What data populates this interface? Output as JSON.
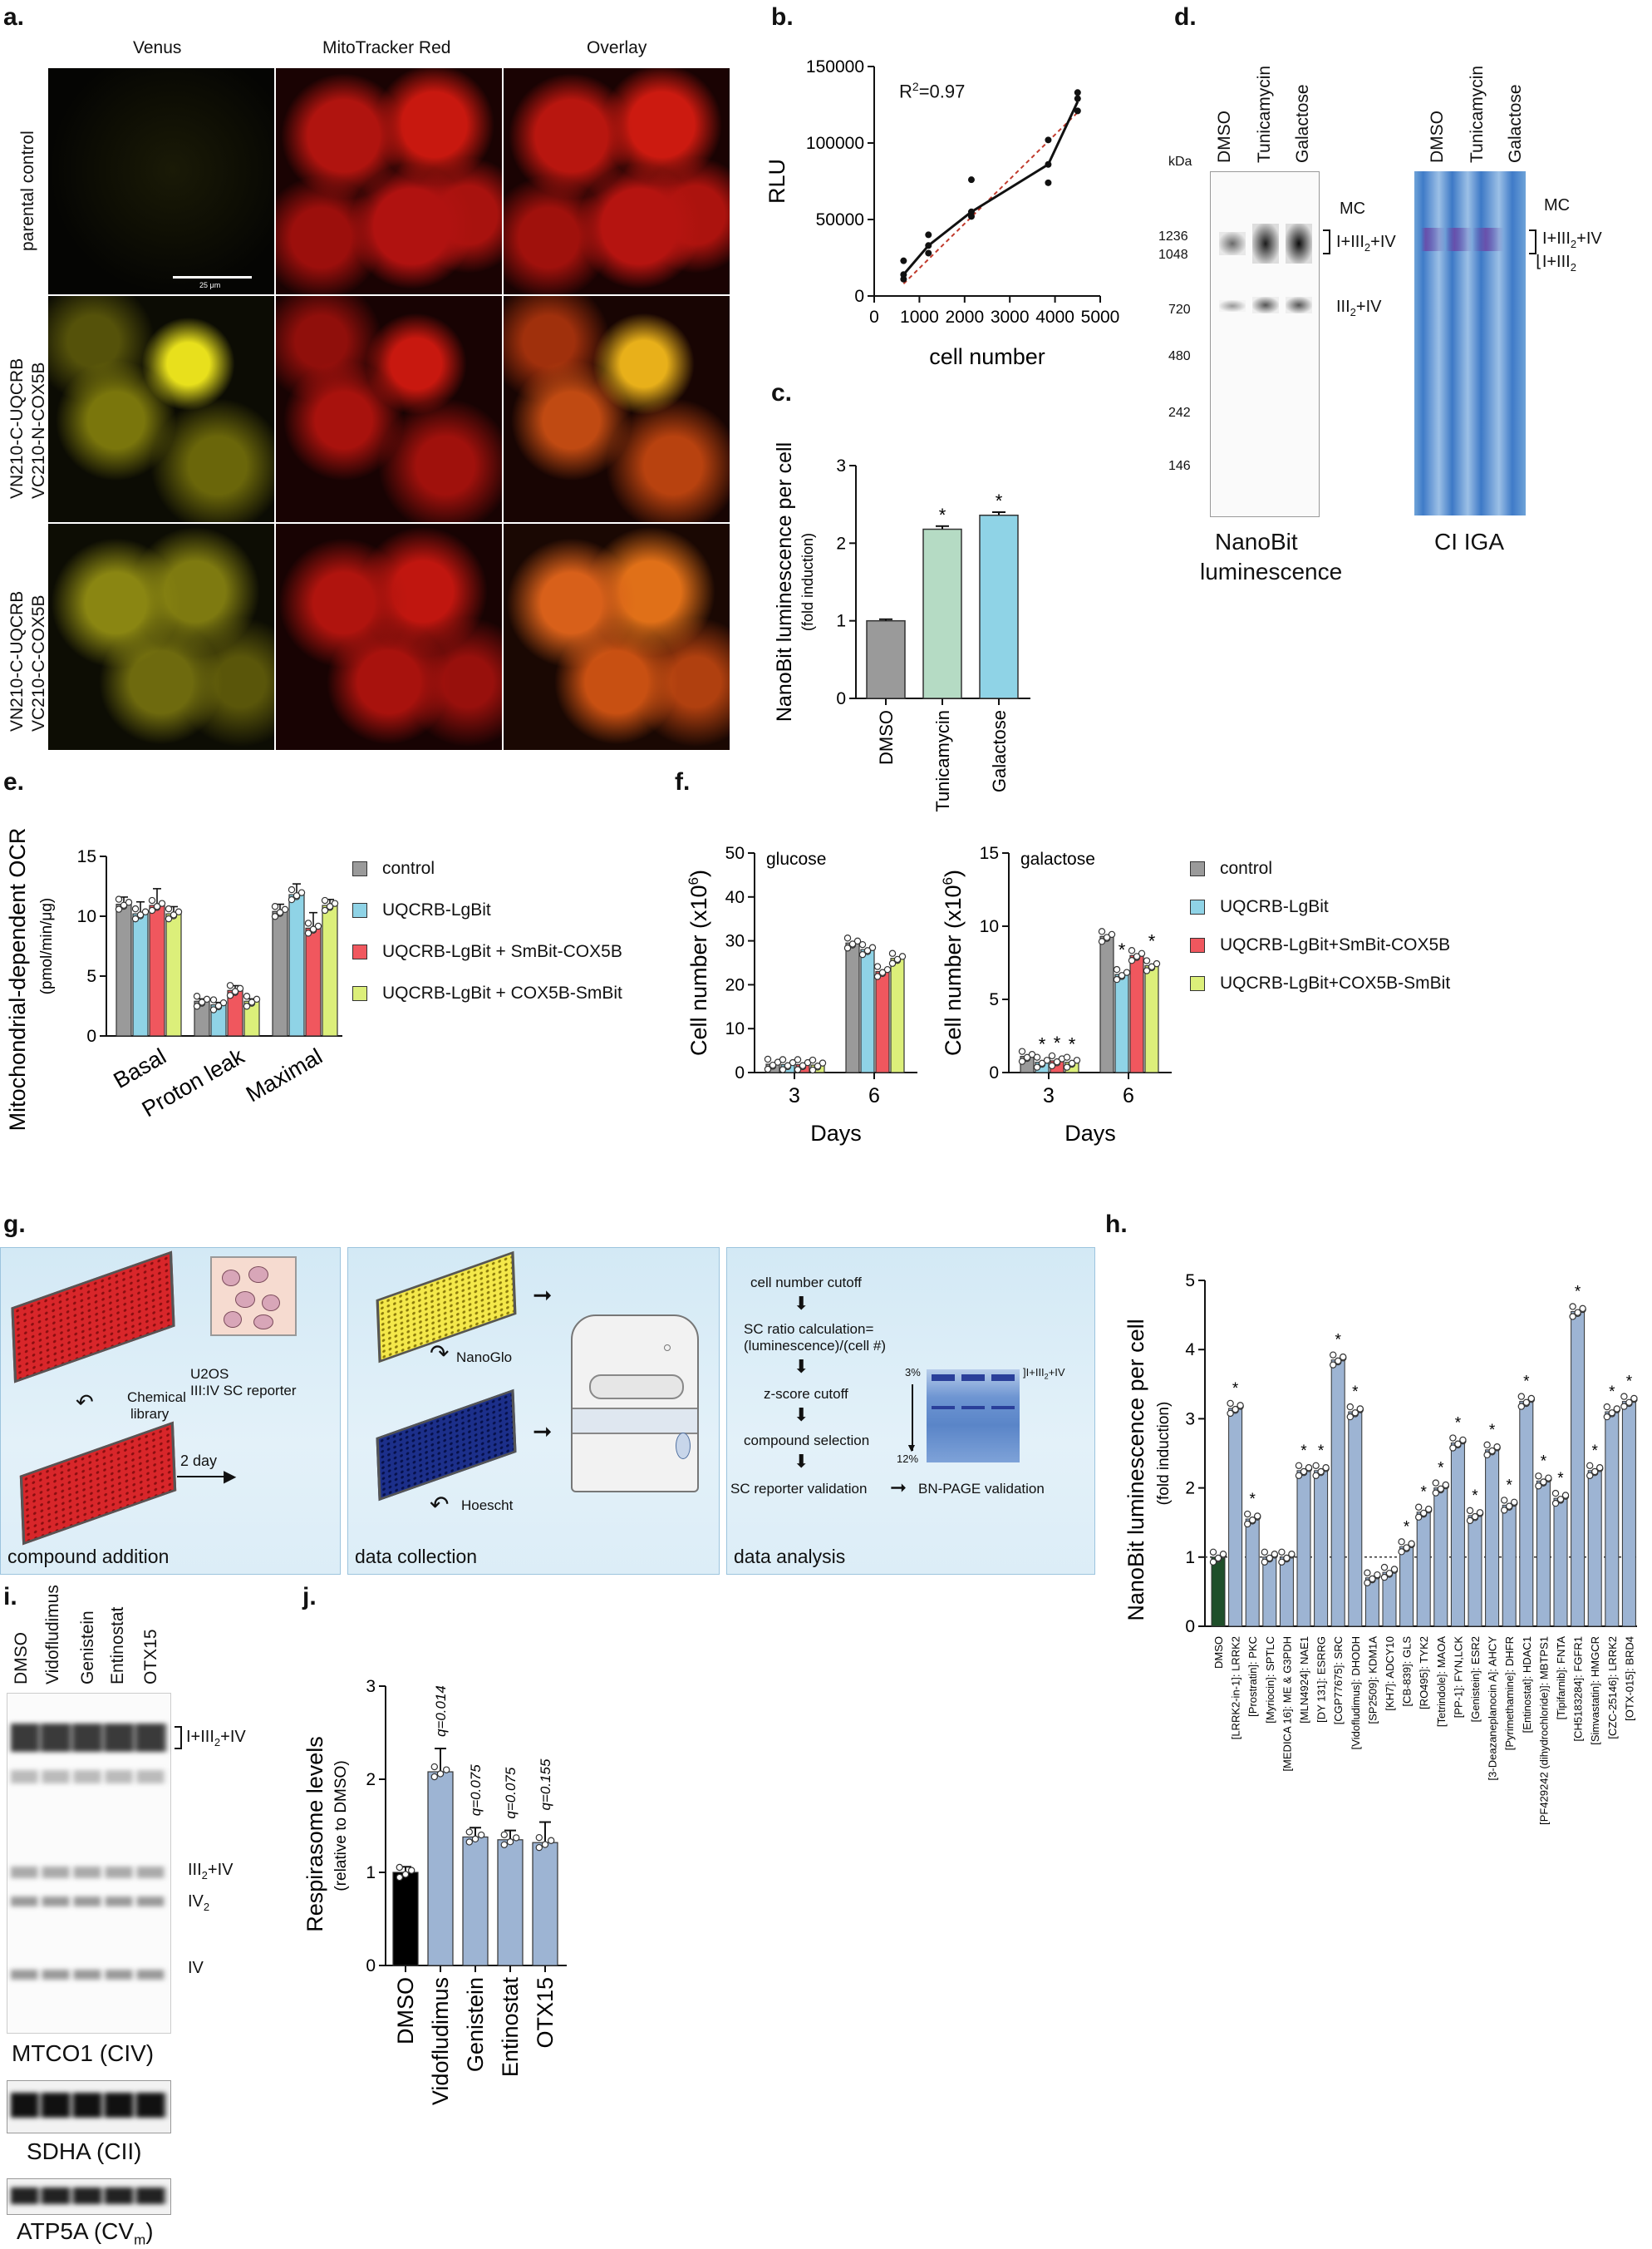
{
  "a": {
    "label": "a.",
    "col_titles": [
      "Venus",
      "MitoTracker Red",
      "Overlay"
    ],
    "rows": [
      [
        "parental control"
      ],
      [
        "VN210-C-UQCRB",
        "VC210-N-COX5B"
      ],
      [
        "VN210-C-UQCRB",
        "VC210-C-COX5B"
      ]
    ],
    "scalebar": "25 μm"
  },
  "b": {
    "label": "b.",
    "r2_main": "R",
    "r2_sup": "2",
    "r2_val": "=0.97",
    "chart_data": {
      "type": "scatter",
      "xlabel": "cell number",
      "ylabel": "RLU",
      "xlim": [
        0,
        5000
      ],
      "ylim": [
        0,
        150000
      ],
      "xticks": [
        "0",
        "1000",
        "2000",
        "3000",
        "4000",
        "5000"
      ],
      "yticks": [
        "0",
        "50000",
        "100000",
        "150000"
      ],
      "mean_line": {
        "x": [
          650,
          1200,
          2150,
          3850,
          4500
        ],
        "y": [
          14000,
          33000,
          55000,
          86000,
          127000
        ]
      },
      "fit_line": {
        "x": [
          650,
          4500
        ],
        "y": [
          8000,
          120000
        ]
      },
      "points": {
        "x": [
          650,
          650,
          650,
          1200,
          1200,
          1200,
          2150,
          2150,
          2150,
          3850,
          3850,
          3850,
          4500,
          4500,
          4500
        ],
        "y": [
          11000,
          14000,
          23000,
          28000,
          33000,
          40000,
          52000,
          55000,
          76000,
          74000,
          86000,
          102000,
          121000,
          129000,
          133000
        ]
      }
    }
  },
  "c": {
    "label": "c.",
    "chart_data": {
      "type": "bar",
      "categories": [
        "DMSO",
        "Tunicamycin",
        "Galactose"
      ],
      "values": [
        1.0,
        2.18,
        2.36
      ],
      "errors": [
        0.02,
        0.04,
        0.04
      ],
      "significant": [
        "",
        "*",
        "*"
      ],
      "colors": [
        "#9a9a9a",
        "#b5dbc4",
        "#8fd3e6"
      ],
      "ylabel": "NanoBit luminescence per cell",
      "ylabel_sub": "(fold induction)",
      "ylim": [
        0,
        3
      ],
      "yticks": [
        "0",
        "1",
        "2",
        "3"
      ]
    }
  },
  "d": {
    "label": "d.",
    "kda": "kDa",
    "lanes": [
      "DMSO",
      "Tunicamycin",
      "Galactose"
    ],
    "markers": [
      "1236",
      "1048",
      "720",
      "480",
      "242",
      "146"
    ],
    "bands_left": [
      "MC",
      "I+III",
      "2",
      "+IV",
      "III",
      "2",
      "+IV"
    ],
    "bands_right": [
      "MC",
      "I+III",
      "2",
      "+IV",
      "I+III",
      "2"
    ],
    "title_left_1": "NanoBit",
    "title_left_2": "luminescence",
    "title_right": "CI IGA"
  },
  "e": {
    "label": "e.",
    "chart_data": {
      "type": "bar",
      "categories": [
        "Basal",
        "Proton leak",
        "Maximal"
      ],
      "series": [
        {
          "name": "control",
          "values": [
            11.0,
            2.9,
            10.4
          ]
        },
        {
          "name": "UQCRB-LgBit",
          "values": [
            10.2,
            2.6,
            11.8
          ]
        },
        {
          "name": "UQCRB-LgBit + SmBit-COX5B",
          "values": [
            10.9,
            3.8,
            9.0
          ]
        },
        {
          "name": "UQCRB-LgBit + COX5B-SmBit",
          "values": [
            10.2,
            2.9,
            10.9
          ]
        }
      ],
      "errors": [
        [
          0.6,
          1.0,
          1.4,
          0.6
        ],
        [
          0.2,
          0.2,
          0.4,
          0.2
        ],
        [
          0.6,
          0.9,
          1.3,
          0.5
        ]
      ],
      "ylabel_1": "Mitochondrial-dependent OCR",
      "ylabel_2": "(pmol/min/μg)",
      "ylim": [
        0,
        15
      ],
      "yticks": [
        "0",
        "5",
        "10",
        "15"
      ],
      "legend": [
        "control",
        "UQCRB-LgBit",
        "UQCRB-LgBit + SmBit-COX5B",
        "UQCRB-LgBit + COX5B-SmBit"
      ]
    }
  },
  "f": {
    "label": "f.",
    "chart_data": [
      {
        "type": "bar",
        "title": "glucose",
        "categories": [
          "3",
          "6"
        ],
        "series": [
          {
            "name": "control",
            "values": [
              1.9,
              29.5
            ]
          },
          {
            "name": "UQCRB-LgBit",
            "values": [
              1.8,
              28.0
            ]
          },
          {
            "name": "UQCRB-LgBit+SmBit-COX5B",
            "values": [
              1.8,
              23.0
            ]
          },
          {
            "name": "UQCRB-LgBit+COX5B-SmBit",
            "values": [
              1.7,
              26.0
            ]
          }
        ],
        "xlabel": "Days",
        "ylabel": "Cell number (x10",
        "ylabel_sup": "6",
        "ylabel_end": ")",
        "ylim": [
          0,
          50
        ],
        "yticks": [
          "0",
          "10",
          "20",
          "30",
          "40",
          "50"
        ]
      },
      {
        "type": "bar",
        "title": "galactose",
        "categories": [
          "3",
          "6"
        ],
        "series": [
          {
            "name": "control",
            "values": [
              1.1,
              9.3
            ]
          },
          {
            "name": "UQCRB-LgBit",
            "values": [
              0.7,
              6.7
            ]
          },
          {
            "name": "UQCRB-LgBit+SmBit-COX5B",
            "values": [
              0.8,
              8.0
            ]
          },
          {
            "name": "UQCRB-LgBit+COX5B-SmBit",
            "values": [
              0.7,
              7.3
            ]
          }
        ],
        "significant_day3": [
          "",
          "*",
          "*",
          "*"
        ],
        "significant_day6": [
          "",
          "*",
          "",
          "*"
        ],
        "xlabel": "Days",
        "ylabel": "Cell number (x10",
        "ylabel_sup": "6",
        "ylabel_end": ")",
        "ylim": [
          0,
          15
        ],
        "yticks": [
          "0",
          "5",
          "10",
          "15"
        ]
      }
    ],
    "legend": [
      "control",
      "UQCRB-LgBit",
      "UQCRB-LgBit+SmBit-COX5B",
      "UQCRB-LgBit+COX5B-SmBit"
    ]
  },
  "colors": {
    "control": "#9a9a9a",
    "lgbit": "#8fd3e6",
    "smbit": "#f0575e",
    "cox5b": "#dcef7a",
    "h_bar": "#9db4d3",
    "dmso_bar": "#1f4f2a",
    "j_bar": "#9db4d3"
  },
  "g": {
    "label": "g.",
    "panel1": {
      "caption": "compound addition",
      "reporter_1": "U2OS",
      "reporter_2": "III:IV SC reporter",
      "library_1": "Chemical",
      "library_2": "library",
      "day": "2 day"
    },
    "panel2": {
      "caption": "data collection",
      "nanoglo": "NanoGlo",
      "hoescht": "Hoescht"
    },
    "panel3": {
      "caption": "data analysis",
      "steps": [
        "cell number cutoff",
        "SC ratio calculation=",
        "(luminescence)/(cell #)",
        "z-score cutoff",
        "compound selection",
        "SC reporter validation"
      ],
      "validation": "BN-PAGE validation",
      "gel_top": "3%",
      "gel_bottom": "12%",
      "gel_band": "I+III",
      "gel_band_sub": "2",
      "gel_band_end": "+IV"
    }
  },
  "h": {
    "label": "h.",
    "chart_data": {
      "type": "bar",
      "categories": [
        "DMSO",
        "[LRRK2-in-1]: LRRK2",
        "[Prostratin]: PKC",
        "[Myriocin]: SPTLC",
        "[MEDICA 16]: ME & G3PDH",
        "[MLN4924]: NAE1",
        "[DY 131]: ESRRG",
        "[CGP77675]: SRC",
        "[Vidofludimus]: DHODH",
        "[SP2509]: KDM1A",
        "[KH7]: ADCY10",
        "[CB-839]: GLS",
        "[RO495]: TYK2",
        "[Tetrindole]: MAOA",
        "[PP-1]: FYN,LCK",
        "[Genistein]: ESR2",
        "[3-Deazaneplanocin A]: AHCY",
        "[Pyrimethamine]: DHFR",
        "[Entinostat]: HDAC1",
        "[PF429242 (dihydrochloride)]: MBTPS1",
        "[Tipifarnib]: FNTA",
        "[CH5183284]: FGFR1",
        "[Simvastatin]: HMGCR",
        "[CZC-25146]: LRRK2",
        "[OTX-015]: BRD4"
      ],
      "values": [
        1.0,
        3.15,
        1.55,
        1.0,
        1.0,
        2.25,
        2.25,
        3.85,
        3.1,
        0.7,
        0.78,
        1.15,
        1.65,
        2.0,
        2.65,
        1.6,
        2.55,
        1.75,
        3.25,
        2.1,
        1.85,
        4.55,
        2.25,
        3.1,
        3.25
      ],
      "significant": [
        "",
        "*",
        "*",
        "",
        "",
        "*",
        "*",
        "*",
        "*",
        "",
        "",
        "*",
        "*",
        "*",
        "*",
        "*",
        "*",
        "*",
        "*",
        "*",
        "*",
        "*",
        "*",
        "*",
        "*"
      ],
      "ylabel": "NanoBit luminescence per cell",
      "ylabel_sub": "(fold induction)",
      "ylim": [
        0,
        5
      ],
      "yticks": [
        "0",
        "1",
        "2",
        "3",
        "4",
        "5"
      ],
      "reference_line": 1
    }
  },
  "i": {
    "label": "i.",
    "lanes": [
      "DMSO",
      "Vidofludimus",
      "Genistein",
      "Entinostat",
      "OTX15"
    ],
    "bands": [
      "I+III",
      "2",
      "+IV",
      "III",
      "2",
      "+IV",
      "IV",
      "2",
      "IV"
    ],
    "blot_titles": [
      "MTCO1 (CIV)",
      "SDHA (CII)",
      "ATP5A (CV",
      "m",
      ")"
    ]
  },
  "j": {
    "label": "j.",
    "chart_data": {
      "type": "bar",
      "categories": [
        "DMSO",
        "Vidofludimus",
        "Genistein",
        "Entinostat",
        "OTX15"
      ],
      "values": [
        1.0,
        2.08,
        1.38,
        1.35,
        1.32
      ],
      "errors": [
        0.06,
        0.25,
        0.1,
        0.1,
        0.22
      ],
      "q_values": [
        "",
        "q=0.014",
        "q=0.075",
        "q=0.075",
        "q=0.155"
      ],
      "ylabel": "Respirasome levels",
      "ylabel_sub": "(relative to DMSO)",
      "ylim": [
        0,
        3
      ],
      "yticks": [
        "0",
        "1",
        "2",
        "3"
      ]
    }
  }
}
